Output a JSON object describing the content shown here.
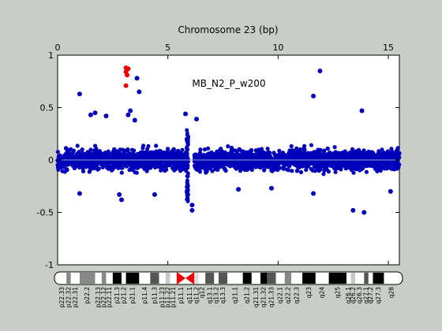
{
  "colors": {
    "background": "#c8cdc8",
    "plot_bg": "#ffffff",
    "points": "#0000bb",
    "highlight": "#ee0000",
    "zero_line": "#8aa0c8",
    "centromere": "#ee0000"
  },
  "chart_data": {
    "type": "scatter",
    "title": "Chromosome 23 (bp)",
    "annotation": "MB_N2_P_w200",
    "xlabel": "Chromosome 23 (bp)",
    "ylabel": "",
    "xlim": [
      0,
      15.5
    ],
    "ylim": [
      -1,
      1
    ],
    "xticks": [
      0,
      5,
      10,
      15
    ],
    "yticks": [
      -1,
      -0.5,
      0,
      0.5,
      1
    ],
    "grid": false,
    "point_cloud": {
      "description_range": "dense cloud of points roughly between -0.2 and 0.2",
      "x_start": 0.0,
      "x_end": 15.5,
      "gap": [
        5.9,
        6.2
      ],
      "band_low": -0.2,
      "band_high": 0.2
    },
    "outliers_blue": [
      {
        "x": 1.0,
        "y": 0.63
      },
      {
        "x": 1.5,
        "y": 0.43
      },
      {
        "x": 1.7,
        "y": 0.45
      },
      {
        "x": 2.2,
        "y": 0.42
      },
      {
        "x": 3.2,
        "y": 0.43
      },
      {
        "x": 3.3,
        "y": 0.47
      },
      {
        "x": 3.6,
        "y": 0.78
      },
      {
        "x": 3.7,
        "y": 0.65
      },
      {
        "x": 3.5,
        "y": 0.38
      },
      {
        "x": 5.8,
        "y": 0.44
      },
      {
        "x": 6.3,
        "y": 0.39
      },
      {
        "x": 11.6,
        "y": 0.61
      },
      {
        "x": 11.9,
        "y": 0.85
      },
      {
        "x": 13.8,
        "y": 0.47
      },
      {
        "x": 13.4,
        "y": -0.48
      },
      {
        "x": 13.9,
        "y": -0.5
      },
      {
        "x": 6.1,
        "y": -0.48
      },
      {
        "x": 6.1,
        "y": -0.43
      },
      {
        "x": 2.9,
        "y": -0.38
      },
      {
        "x": 2.8,
        "y": -0.33
      },
      {
        "x": 4.4,
        "y": -0.33
      },
      {
        "x": 1.0,
        "y": -0.32
      },
      {
        "x": 15.1,
        "y": -0.3
      },
      {
        "x": 11.6,
        "y": -0.32
      },
      {
        "x": 8.2,
        "y": -0.28
      },
      {
        "x": 9.7,
        "y": -0.27
      }
    ],
    "outliers_red": [
      {
        "x": 3.1,
        "y": 0.88
      },
      {
        "x": 3.1,
        "y": 0.84
      },
      {
        "x": 3.2,
        "y": 0.87
      },
      {
        "x": 3.15,
        "y": 0.81
      },
      {
        "x": 3.1,
        "y": 0.71
      }
    ],
    "ideogram": {
      "bands": [
        {
          "label": "p22.33",
          "start": 0.0,
          "end": 0.4,
          "stain": "gneg"
        },
        {
          "label": "p22.32",
          "start": 0.4,
          "end": 0.6,
          "stain": "gpos50"
        },
        {
          "label": "p22.31",
          "start": 0.6,
          "end": 1.0,
          "stain": "gneg"
        },
        {
          "label": "p22.2",
          "start": 1.0,
          "end": 1.7,
          "stain": "gpos50"
        },
        {
          "label": "p22.13",
          "start": 1.7,
          "end": 2.0,
          "stain": "gneg"
        },
        {
          "label": "p22.12",
          "start": 2.0,
          "end": 2.2,
          "stain": "gpos50"
        },
        {
          "label": "p22.11",
          "start": 2.2,
          "end": 2.5,
          "stain": "gneg"
        },
        {
          "label": "p21.3",
          "start": 2.5,
          "end": 2.9,
          "stain": "gpos100"
        },
        {
          "label": "p21.2",
          "start": 2.9,
          "end": 3.1,
          "stain": "gneg"
        },
        {
          "label": "p21.1",
          "start": 3.1,
          "end": 3.7,
          "stain": "gpos100"
        },
        {
          "label": "p11.4",
          "start": 3.7,
          "end": 4.2,
          "stain": "gneg"
        },
        {
          "label": "p11.3",
          "start": 4.2,
          "end": 4.6,
          "stain": "gpos75"
        },
        {
          "label": "p11.23",
          "start": 4.6,
          "end": 4.9,
          "stain": "gneg"
        },
        {
          "label": "p11.22",
          "start": 4.9,
          "end": 5.1,
          "stain": "gpos25"
        },
        {
          "label": "p11.21",
          "start": 5.1,
          "end": 5.4,
          "stain": "gneg"
        },
        {
          "label": "p11.1",
          "start": 5.4,
          "end": 5.8,
          "stain": "acen"
        },
        {
          "label": "q11.1",
          "start": 5.8,
          "end": 6.2,
          "stain": "acen"
        },
        {
          "label": "q11.2",
          "start": 6.2,
          "end": 6.4,
          "stain": "gvar"
        },
        {
          "label": "q12",
          "start": 6.4,
          "end": 6.7,
          "stain": "gneg"
        },
        {
          "label": "q13.1",
          "start": 6.7,
          "end": 7.1,
          "stain": "gpos75"
        },
        {
          "label": "q13.2",
          "start": 7.1,
          "end": 7.3,
          "stain": "gneg"
        },
        {
          "label": "q13.3",
          "start": 7.3,
          "end": 7.7,
          "stain": "gpos75"
        },
        {
          "label": "q21.1",
          "start": 7.7,
          "end": 8.4,
          "stain": "gneg"
        },
        {
          "label": "q21.2",
          "start": 8.4,
          "end": 8.8,
          "stain": "gpos100"
        },
        {
          "label": "q21.31",
          "start": 8.8,
          "end": 9.2,
          "stain": "gneg"
        },
        {
          "label": "q21.32",
          "start": 9.2,
          "end": 9.5,
          "stain": "gpos100"
        },
        {
          "label": "q21.33",
          "start": 9.5,
          "end": 9.9,
          "stain": "gpos75"
        },
        {
          "label": "q22.1",
          "start": 9.9,
          "end": 10.3,
          "stain": "gneg"
        },
        {
          "label": "q22.2",
          "start": 10.3,
          "end": 10.6,
          "stain": "gpos50"
        },
        {
          "label": "q22.3",
          "start": 10.6,
          "end": 11.1,
          "stain": "gneg"
        },
        {
          "label": "q23",
          "start": 11.1,
          "end": 11.7,
          "stain": "gpos100"
        },
        {
          "label": "q24",
          "start": 11.7,
          "end": 12.3,
          "stain": "gneg"
        },
        {
          "label": "q25",
          "start": 12.3,
          "end": 13.1,
          "stain": "gpos100"
        },
        {
          "label": "q26.1",
          "start": 13.1,
          "end": 13.3,
          "stain": "gneg"
        },
        {
          "label": "q26.2",
          "start": 13.3,
          "end": 13.5,
          "stain": "gpos25"
        },
        {
          "label": "q26.3",
          "start": 13.5,
          "end": 13.9,
          "stain": "gneg"
        },
        {
          "label": "q27.1",
          "start": 13.9,
          "end": 14.1,
          "stain": "gpos75"
        },
        {
          "label": "q27.2",
          "start": 14.1,
          "end": 14.3,
          "stain": "gneg"
        },
        {
          "label": "q27.3",
          "start": 14.3,
          "end": 14.8,
          "stain": "gpos100"
        },
        {
          "label": "q28",
          "start": 14.8,
          "end": 15.5,
          "stain": "gneg"
        }
      ]
    }
  }
}
